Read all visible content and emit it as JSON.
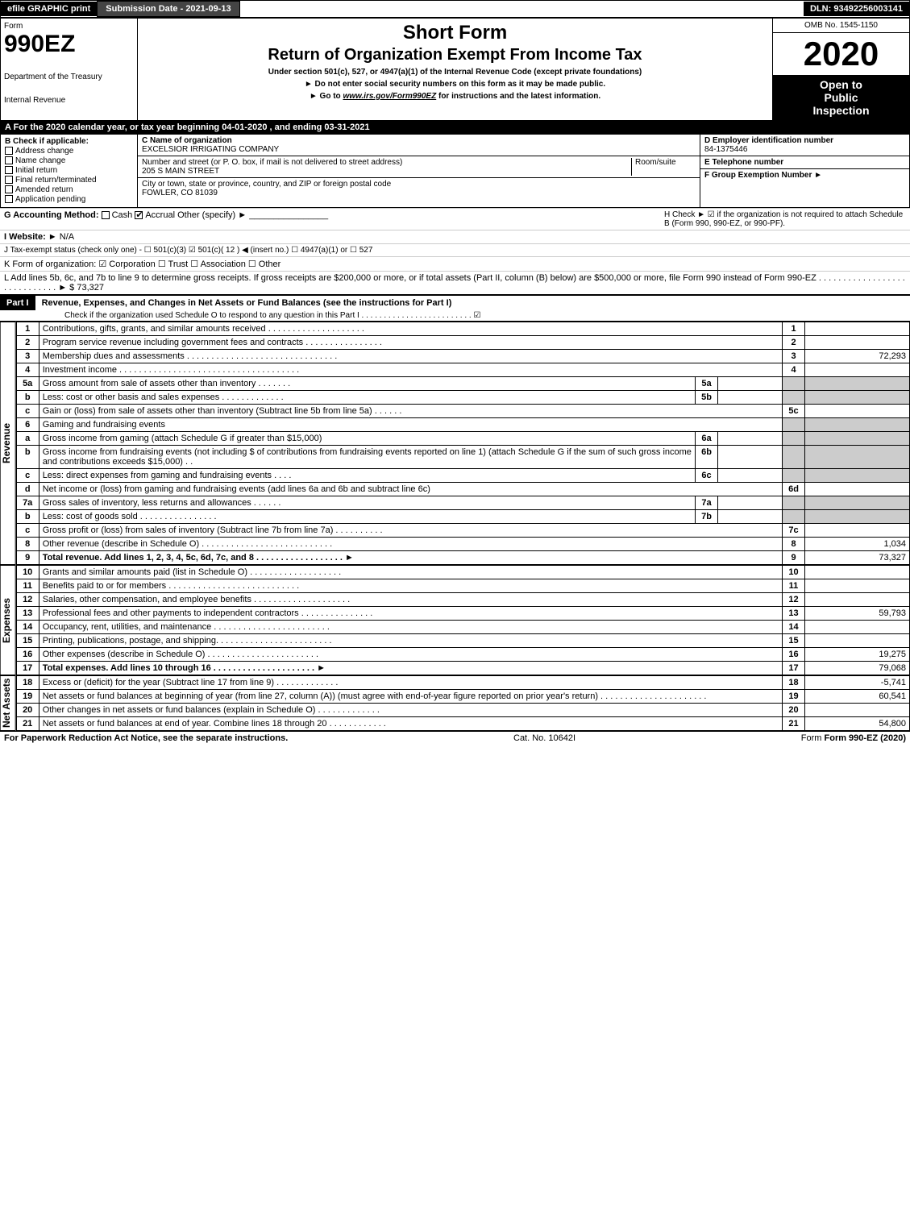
{
  "topbar": {
    "efile": "efile GRAPHIC print",
    "submission": "Submission Date - 2021-09-13",
    "dln": "DLN: 93492256003141"
  },
  "header": {
    "form_label": "Form",
    "form_number": "990EZ",
    "dept1": "Department of the Treasury",
    "dept2": "Internal Revenue",
    "short_form": "Short Form",
    "title": "Return of Organization Exempt From Income Tax",
    "under": "Under section 501(c), 527, or 4947(a)(1) of the Internal Revenue Code (except private foundations)",
    "note1": "► Do not enter social security numbers on this form as it may be made public.",
    "note2_pre": "► Go to ",
    "note2_link": "www.irs.gov/Form990EZ",
    "note2_post": " for instructions and the latest information.",
    "omb": "OMB No. 1545-1150",
    "year": "2020",
    "open1": "Open to",
    "open2": "Public",
    "open3": "Inspection"
  },
  "rowA": "A For the 2020 calendar year, or tax year beginning 04-01-2020 , and ending 03-31-2021",
  "boxB": {
    "label": "B Check if applicable:",
    "opts": [
      "Address change",
      "Name change",
      "Initial return",
      "Final return/terminated",
      "Amended return",
      "Application pending"
    ]
  },
  "boxC": {
    "name_label": "C Name of organization",
    "name": "EXCELSIOR IRRIGATING COMPANY",
    "street_label": "Number and street (or P. O. box, if mail is not delivered to street address)",
    "room_label": "Room/suite",
    "street": "205 S MAIN STREET",
    "city_label": "City or town, state or province, country, and ZIP or foreign postal code",
    "city": "FOWLER, CO  81039"
  },
  "boxD": {
    "ein_label": "D Employer identification number",
    "ein": "84-1375446",
    "phone_label": "E Telephone number",
    "group_label": "F Group Exemption Number  ►"
  },
  "rowG": {
    "label": "G Accounting Method:",
    "cash": "Cash",
    "accrual": "Accrual",
    "other": "Other (specify) ►"
  },
  "rowH": {
    "text": "H  Check ►  ☑  if the organization is not required to attach Schedule B (Form 990, 990-EZ, or 990-PF)."
  },
  "rowI": {
    "label": "I Website: ►",
    "val": "N/A"
  },
  "rowJ": "J Tax-exempt status (check only one) - ☐ 501(c)(3)  ☑ 501(c)( 12 ) ◀ (insert no.) ☐ 4947(a)(1) or  ☐ 527",
  "rowK": "K Form of organization:  ☑ Corporation  ☐ Trust  ☐ Association  ☐ Other",
  "rowL": {
    "text": "L Add lines 5b, 6c, and 7b to line 9 to determine gross receipts. If gross receipts are $200,000 or more, or if total assets (Part II, column (B) below) are $500,000 or more, file Form 990 instead of Form 990-EZ . . . . . . . . . . . . . . . . . . . . . . . . . . . . . ► $",
    "amount": "73,327"
  },
  "part1": {
    "label": "Part I",
    "title": "Revenue, Expenses, and Changes in Net Assets or Fund Balances (see the instructions for Part I)",
    "sub": "Check if the organization used Schedule O to respond to any question in this Part I . . . . . . . . . . . . . . . . . . . . . . . . . ☑"
  },
  "sections": {
    "revenue": "Revenue",
    "expenses": "Expenses",
    "netassets": "Net Assets"
  },
  "lines": [
    {
      "n": "1",
      "d": "Contributions, gifts, grants, and similar amounts received . . . . . . . . . . . . . . . . . . . .",
      "r": "1",
      "v": ""
    },
    {
      "n": "2",
      "d": "Program service revenue including government fees and contracts . . . . . . . . . . . . . . . .",
      "r": "2",
      "v": ""
    },
    {
      "n": "3",
      "d": "Membership dues and assessments . . . . . . . . . . . . . . . . . . . . . . . . . . . . . . .",
      "r": "3",
      "v": "72,293"
    },
    {
      "n": "4",
      "d": "Investment income . . . . . . . . . . . . . . . . . . . . . . . . . . . . . . . . . . . . .",
      "r": "4",
      "v": ""
    },
    {
      "n": "5a",
      "d": "Gross amount from sale of assets other than inventory . . . . . . .",
      "mini": "5a",
      "mv": "",
      "shade": true
    },
    {
      "n": "b",
      "d": "Less: cost or other basis and sales expenses . . . . . . . . . . . . .",
      "mini": "5b",
      "mv": "",
      "shade": true
    },
    {
      "n": "c",
      "d": "Gain or (loss) from sale of assets other than inventory (Subtract line 5b from line 5a) . . . . . .",
      "r": "5c",
      "v": ""
    },
    {
      "n": "6",
      "d": "Gaming and fundraising events",
      "shade": true
    },
    {
      "n": "a",
      "d": "Gross income from gaming (attach Schedule G if greater than $15,000)",
      "mini": "6a",
      "mv": "",
      "shade": true
    },
    {
      "n": "b",
      "d": "Gross income from fundraising events (not including $                 of contributions from fundraising events reported on line 1) (attach Schedule G if the sum of such gross income and contributions exceeds $15,000)   . .",
      "mini": "6b",
      "mv": "",
      "shade": true
    },
    {
      "n": "c",
      "d": "Less: direct expenses from gaming and fundraising events   . . . .",
      "mini": "6c",
      "mv": "",
      "shade": true
    },
    {
      "n": "d",
      "d": "Net income or (loss) from gaming and fundraising events (add lines 6a and 6b and subtract line 6c)",
      "r": "6d",
      "v": ""
    },
    {
      "n": "7a",
      "d": "Gross sales of inventory, less returns and allowances . . . . . .",
      "mini": "7a",
      "mv": "",
      "shade": true
    },
    {
      "n": "b",
      "d": "Less: cost of goods sold       . . . . . . . . . . . . . . . .",
      "mini": "7b",
      "mv": "",
      "shade": true
    },
    {
      "n": "c",
      "d": "Gross profit or (loss) from sales of inventory (Subtract line 7b from line 7a) . . . . . . . . . .",
      "r": "7c",
      "v": ""
    },
    {
      "n": "8",
      "d": "Other revenue (describe in Schedule O) . . . . . . . . . . . . . . . . . . . . . . . . . . .",
      "r": "8",
      "v": "1,034"
    },
    {
      "n": "9",
      "d": "Total revenue. Add lines 1, 2, 3, 4, 5c, 6d, 7c, and 8  . . . . . . . . . . . . . . . . . .  ►",
      "r": "9",
      "v": "73,327",
      "bold": true
    }
  ],
  "exp_lines": [
    {
      "n": "10",
      "d": "Grants and similar amounts paid (list in Schedule O) . . . . . . . . . . . . . . . . . . .",
      "r": "10",
      "v": ""
    },
    {
      "n": "11",
      "d": "Benefits paid to or for members    . . . . . . . . . . . . . . . . . . . . . . . . . . .",
      "r": "11",
      "v": ""
    },
    {
      "n": "12",
      "d": "Salaries, other compensation, and employee benefits . . . . . . . . . . . . . . . . . . . .",
      "r": "12",
      "v": ""
    },
    {
      "n": "13",
      "d": "Professional fees and other payments to independent contractors . . . . . . . . . . . . . . .",
      "r": "13",
      "v": "59,793"
    },
    {
      "n": "14",
      "d": "Occupancy, rent, utilities, and maintenance . . . . . . . . . . . . . . . . . . . . . . . .",
      "r": "14",
      "v": ""
    },
    {
      "n": "15",
      "d": "Printing, publications, postage, and shipping. . . . . . . . . . . . . . . . . . . . . . . .",
      "r": "15",
      "v": ""
    },
    {
      "n": "16",
      "d": "Other expenses (describe in Schedule O)    . . . . . . . . . . . . . . . . . . . . . . .",
      "r": "16",
      "v": "19,275"
    },
    {
      "n": "17",
      "d": "Total expenses. Add lines 10 through 16    . . . . . . . . . . . . . . . . . . . . .  ►",
      "r": "17",
      "v": "79,068",
      "bold": true
    }
  ],
  "na_lines": [
    {
      "n": "18",
      "d": "Excess or (deficit) for the year (Subtract line 17 from line 9)       . . . . . . . . . . . . .",
      "r": "18",
      "v": "-5,741"
    },
    {
      "n": "19",
      "d": "Net assets or fund balances at beginning of year (from line 27, column (A)) (must agree with end-of-year figure reported on prior year's return) . . . . . . . . . . . . . . . . . . . . . .",
      "r": "19",
      "v": "60,541"
    },
    {
      "n": "20",
      "d": "Other changes in net assets or fund balances (explain in Schedule O) . . . . . . . . . . . . .",
      "r": "20",
      "v": ""
    },
    {
      "n": "21",
      "d": "Net assets or fund balances at end of year. Combine lines 18 through 20 . . . . . . . . . . . .",
      "r": "21",
      "v": "54,800"
    }
  ],
  "footer": {
    "left": "For Paperwork Reduction Act Notice, see the separate instructions.",
    "mid": "Cat. No. 10642I",
    "right": "Form 990-EZ (2020)"
  }
}
